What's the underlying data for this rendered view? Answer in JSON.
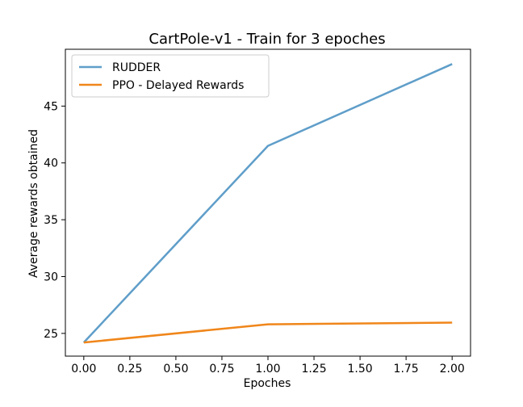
{
  "chart_data": {
    "type": "line",
    "title": "CartPole-v1 - Train for 3 epoches",
    "xlabel": "Epoches",
    "ylabel": "Average rewards obtained",
    "x": [
      0.0,
      1.0,
      2.0
    ],
    "xlim": [
      -0.1,
      2.1
    ],
    "ylim": [
      23.0,
      50.0
    ],
    "xticks": [
      0.0,
      0.25,
      0.5,
      0.75,
      1.0,
      1.25,
      1.5,
      1.75,
      2.0
    ],
    "xtick_labels": [
      "0.00",
      "0.25",
      "0.50",
      "0.75",
      "1.00",
      "1.25",
      "1.50",
      "1.75",
      "2.00"
    ],
    "yticks": [
      25,
      30,
      35,
      40,
      45
    ],
    "ytick_labels": [
      "25",
      "30",
      "35",
      "40",
      "45"
    ],
    "series": [
      {
        "name": "RUDDER",
        "values": [
          24.2,
          41.5,
          48.7
        ],
        "color": "#5f9ec9"
      },
      {
        "name": "PPO - Delayed Rewards",
        "values": [
          24.2,
          25.8,
          25.95
        ],
        "color": "#f0861a"
      }
    ],
    "legend": "top-left",
    "grid": false
  }
}
